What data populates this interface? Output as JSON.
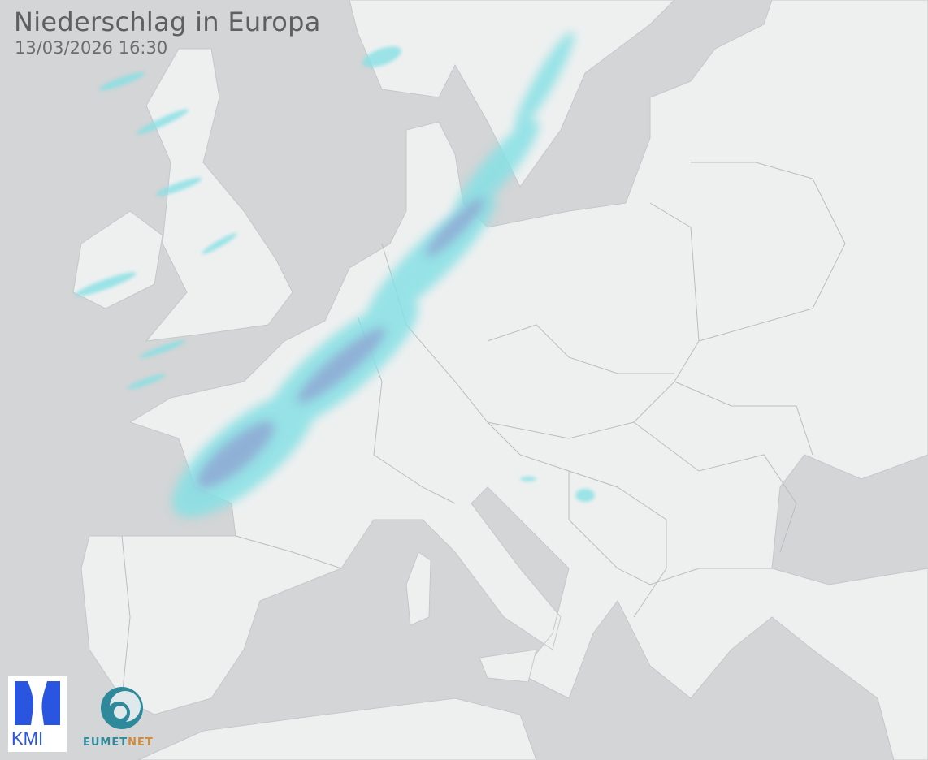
{
  "header": {
    "title": "Niederschlag in Europa",
    "timestamp": "13/03/2026 16:30"
  },
  "logos": {
    "kmi": "KMI",
    "eumetnet_a": "EUMET",
    "eumetnet_b": "NET"
  },
  "colors": {
    "sea": "#d3d5d6",
    "land": "#eef0f0",
    "border": "#b9bdbf",
    "precip_light": "#86e0e4",
    "precip_heavy": "#8ea4d2"
  }
}
